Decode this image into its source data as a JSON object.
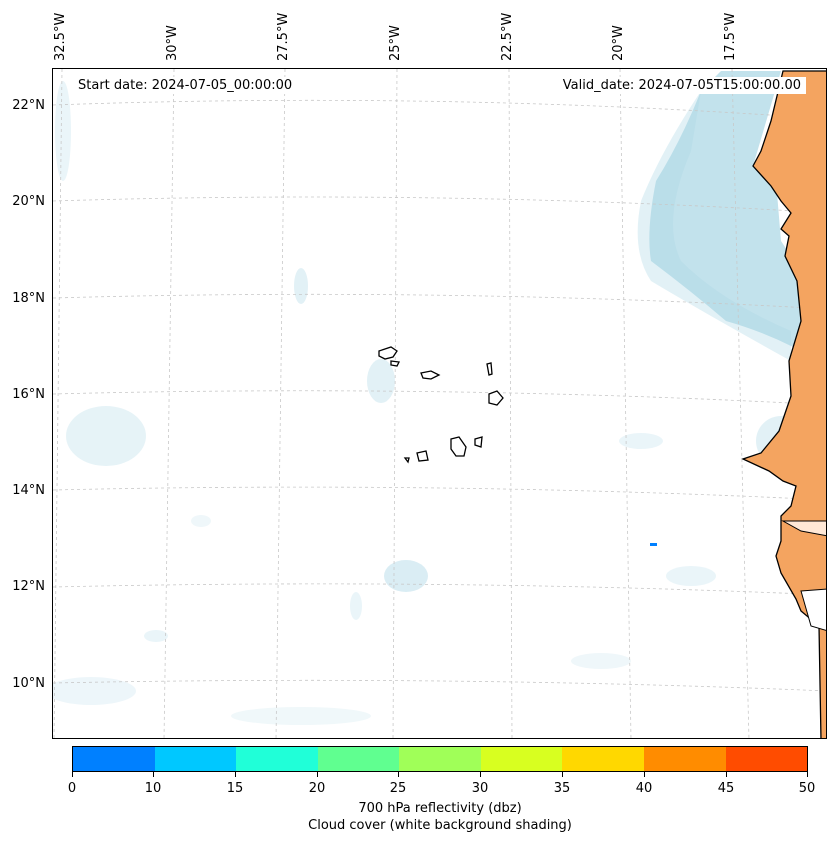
{
  "longitude_labels": [
    "32.5°W",
    "30°W",
    "27.5°W",
    "25°W",
    "22.5°W",
    "20°W",
    "17.5°W"
  ],
  "latitude_labels": [
    "22°N",
    "20°N",
    "18°N",
    "16°N",
    "14°N",
    "12°N",
    "10°N"
  ],
  "start_date_text": "Start date: 2024-07-05_00:00:00",
  "valid_date_text": "Valid_date: 2024-07-05T15:00:00.00",
  "colorbar": {
    "ticks": [
      "0",
      "10",
      "15",
      "20",
      "25",
      "30",
      "35",
      "40",
      "45",
      "50"
    ],
    "colors": [
      "#0080ff",
      "#00c8ff",
      "#20ffd8",
      "#60ff90",
      "#a0ff58",
      "#d8ff20",
      "#ffd800",
      "#ff8c00",
      "#ff4c00"
    ],
    "label_line1": "700 hPa reflectivity (dbz)",
    "label_line2": "Cloud cover (white background shading)"
  },
  "colors": {
    "land_fill": "#f4a460",
    "cloud_fill": "#add8e6",
    "coastline": "#000000",
    "gridline": "#c8c8c8"
  }
}
